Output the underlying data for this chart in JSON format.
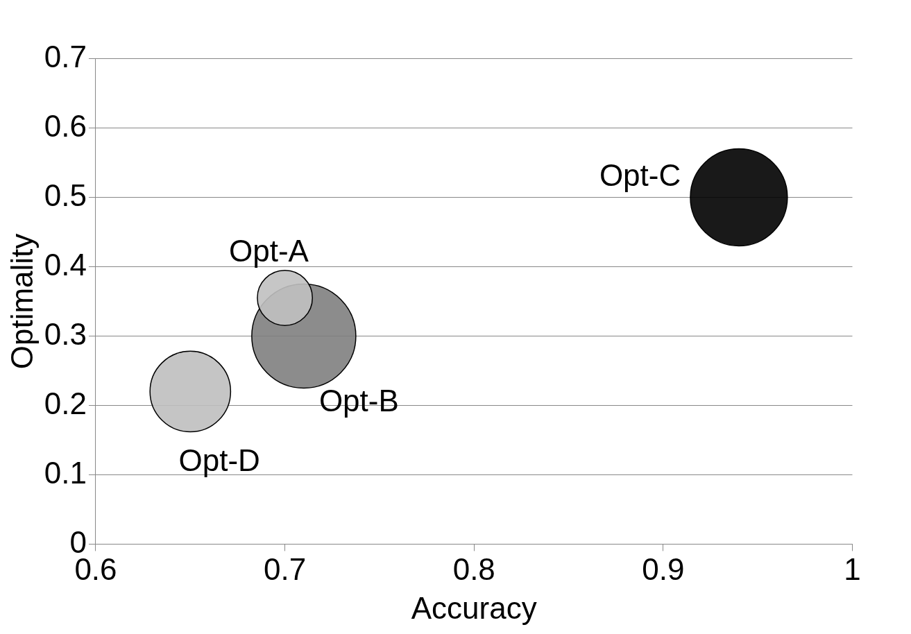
{
  "chart_data": {
    "type": "bubble",
    "xlabel": "Accuracy",
    "ylabel": "Optimality",
    "xlim": [
      0.6,
      1
    ],
    "xticks": [
      0.6,
      0.7,
      0.8,
      0.9,
      1
    ],
    "ylim": [
      0,
      0.7
    ],
    "yticks": [
      0,
      0.1,
      0.2,
      0.3,
      0.4,
      0.5,
      0.6,
      0.7
    ],
    "grid": "y",
    "legend": false,
    "series": [
      {
        "name": "Opt-A",
        "color": "#c0c0c0",
        "x": [
          0.7
        ],
        "values": [
          0.355
        ],
        "sizes": [
          0.28
        ]
      },
      {
        "name": "Opt-B",
        "color": "#7f7f7f",
        "x": [
          0.71
        ],
        "values": [
          0.3
        ],
        "sizes": [
          1
        ]
      },
      {
        "name": "Opt-C",
        "color": "#000000",
        "x": [
          0.94
        ],
        "values": [
          0.5
        ],
        "sizes": [
          0.87
        ]
      },
      {
        "name": "Opt-D",
        "color": "#bfbfbf",
        "x": [
          0.65
        ],
        "values": [
          0.22
        ],
        "sizes": [
          0.6
        ]
      }
    ]
  }
}
